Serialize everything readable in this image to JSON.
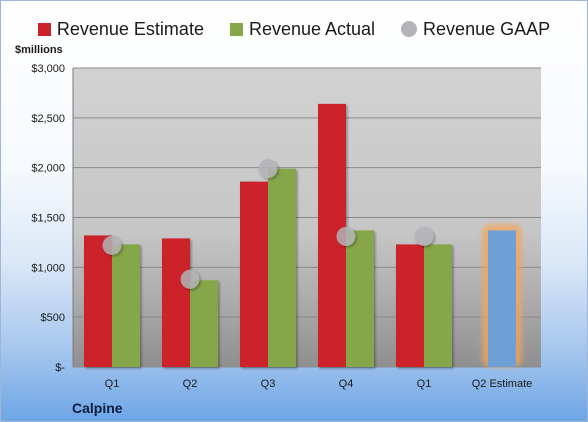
{
  "legend": {
    "estimate": "Revenue Estimate",
    "actual": "Revenue Actual",
    "gaap": "Revenue GAAP"
  },
  "unit_label": "$millions",
  "company": "Calpine",
  "colors": {
    "estimate": "#cc2229",
    "actual": "#86a74a",
    "gaap": "#b3b3b8",
    "q2_estimate_fill": "#6f9fd4",
    "q2_estimate_glow": "#f2a65a"
  },
  "chart_data": {
    "type": "bar",
    "ylabel": "$millions",
    "ylim": [
      0,
      3000
    ],
    "yticks": [
      0,
      500,
      1000,
      1500,
      2000,
      2500,
      3000
    ],
    "ytick_labels": [
      "$-",
      "$500",
      "$1,000",
      "$1,500",
      "$2,000",
      "$2,500",
      "$3,000"
    ],
    "categories": [
      "Q1",
      "Q2",
      "Q3",
      "Q4",
      "Q1",
      "Q2 Estimate"
    ],
    "series": [
      {
        "name": "Revenue Estimate",
        "kind": "bar",
        "values": [
          1320,
          1290,
          1860,
          2640,
          1230,
          1370
        ]
      },
      {
        "name": "Revenue Actual",
        "kind": "bar",
        "values": [
          1230,
          870,
          1990,
          1370,
          1230,
          null
        ]
      },
      {
        "name": "Revenue GAAP",
        "kind": "marker",
        "values": [
          1220,
          880,
          1990,
          1310,
          1310,
          null
        ]
      }
    ],
    "grid": true,
    "legend_position": "top"
  }
}
